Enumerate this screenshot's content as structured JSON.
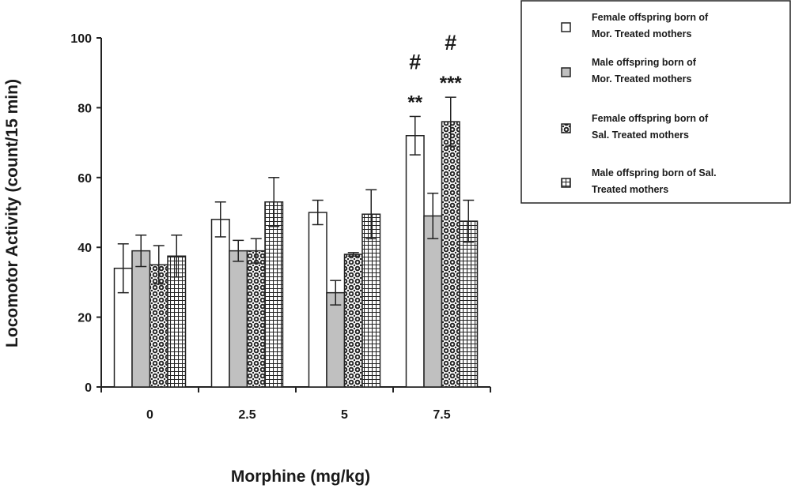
{
  "chart_data": {
    "type": "bar",
    "xlabel": "Morphine (mg/kg)",
    "ylabel": "Locomotor Activity (count/15 min)",
    "categories": [
      "0",
      "2.5",
      "5",
      "7.5"
    ],
    "ylim": [
      0,
      100
    ],
    "yticks": [
      "0",
      "20",
      "40",
      "60",
      "80",
      "100"
    ],
    "grid": false,
    "legend_position": "top-right",
    "series": [
      {
        "name": "Female offspring born of Mor. Treated mothers",
        "legend_lines": [
          "Female offspring born of",
          "Mor. Treated mothers"
        ],
        "values": [
          34,
          48,
          50,
          72
        ],
        "errors": [
          7,
          5,
          3.5,
          5.5
        ],
        "fill": "white",
        "pattern": "none"
      },
      {
        "name": "Male offspring born of Mor. Treated mothers",
        "legend_lines": [
          "Male offspring born of",
          "Mor. Treated mothers"
        ],
        "values": [
          39,
          39,
          27,
          49
        ],
        "errors": [
          4.5,
          3,
          3.5,
          6.5
        ],
        "fill": "#c0c0c0",
        "pattern": "none"
      },
      {
        "name": "Female offspring born of Sal. Treated mothers",
        "legend_lines": [
          "Female offspring born of",
          "Sal. Treated mothers"
        ],
        "values": [
          35,
          39,
          38,
          76
        ],
        "errors": [
          5.5,
          3.5,
          0.5,
          7
        ],
        "fill": "white",
        "pattern": "dots"
      },
      {
        "name": "Male offspring born of Sal. Treated mothers",
        "legend_lines": [
          "Male offspring born of Sal.",
          "Treated mothers"
        ],
        "values": [
          37.5,
          53,
          49.5,
          47.5
        ],
        "errors": [
          6,
          7,
          7,
          6
        ],
        "fill": "white",
        "pattern": "grid"
      }
    ],
    "annotations": [
      {
        "category": "7.5",
        "series": 0,
        "text": "**",
        "row": 1
      },
      {
        "category": "7.5",
        "series": 0,
        "text": "#",
        "row": 2
      },
      {
        "category": "7.5",
        "series": 2,
        "text": "***",
        "row": 1
      },
      {
        "category": "7.5",
        "series": 2,
        "text": "#",
        "row": 2
      }
    ]
  }
}
